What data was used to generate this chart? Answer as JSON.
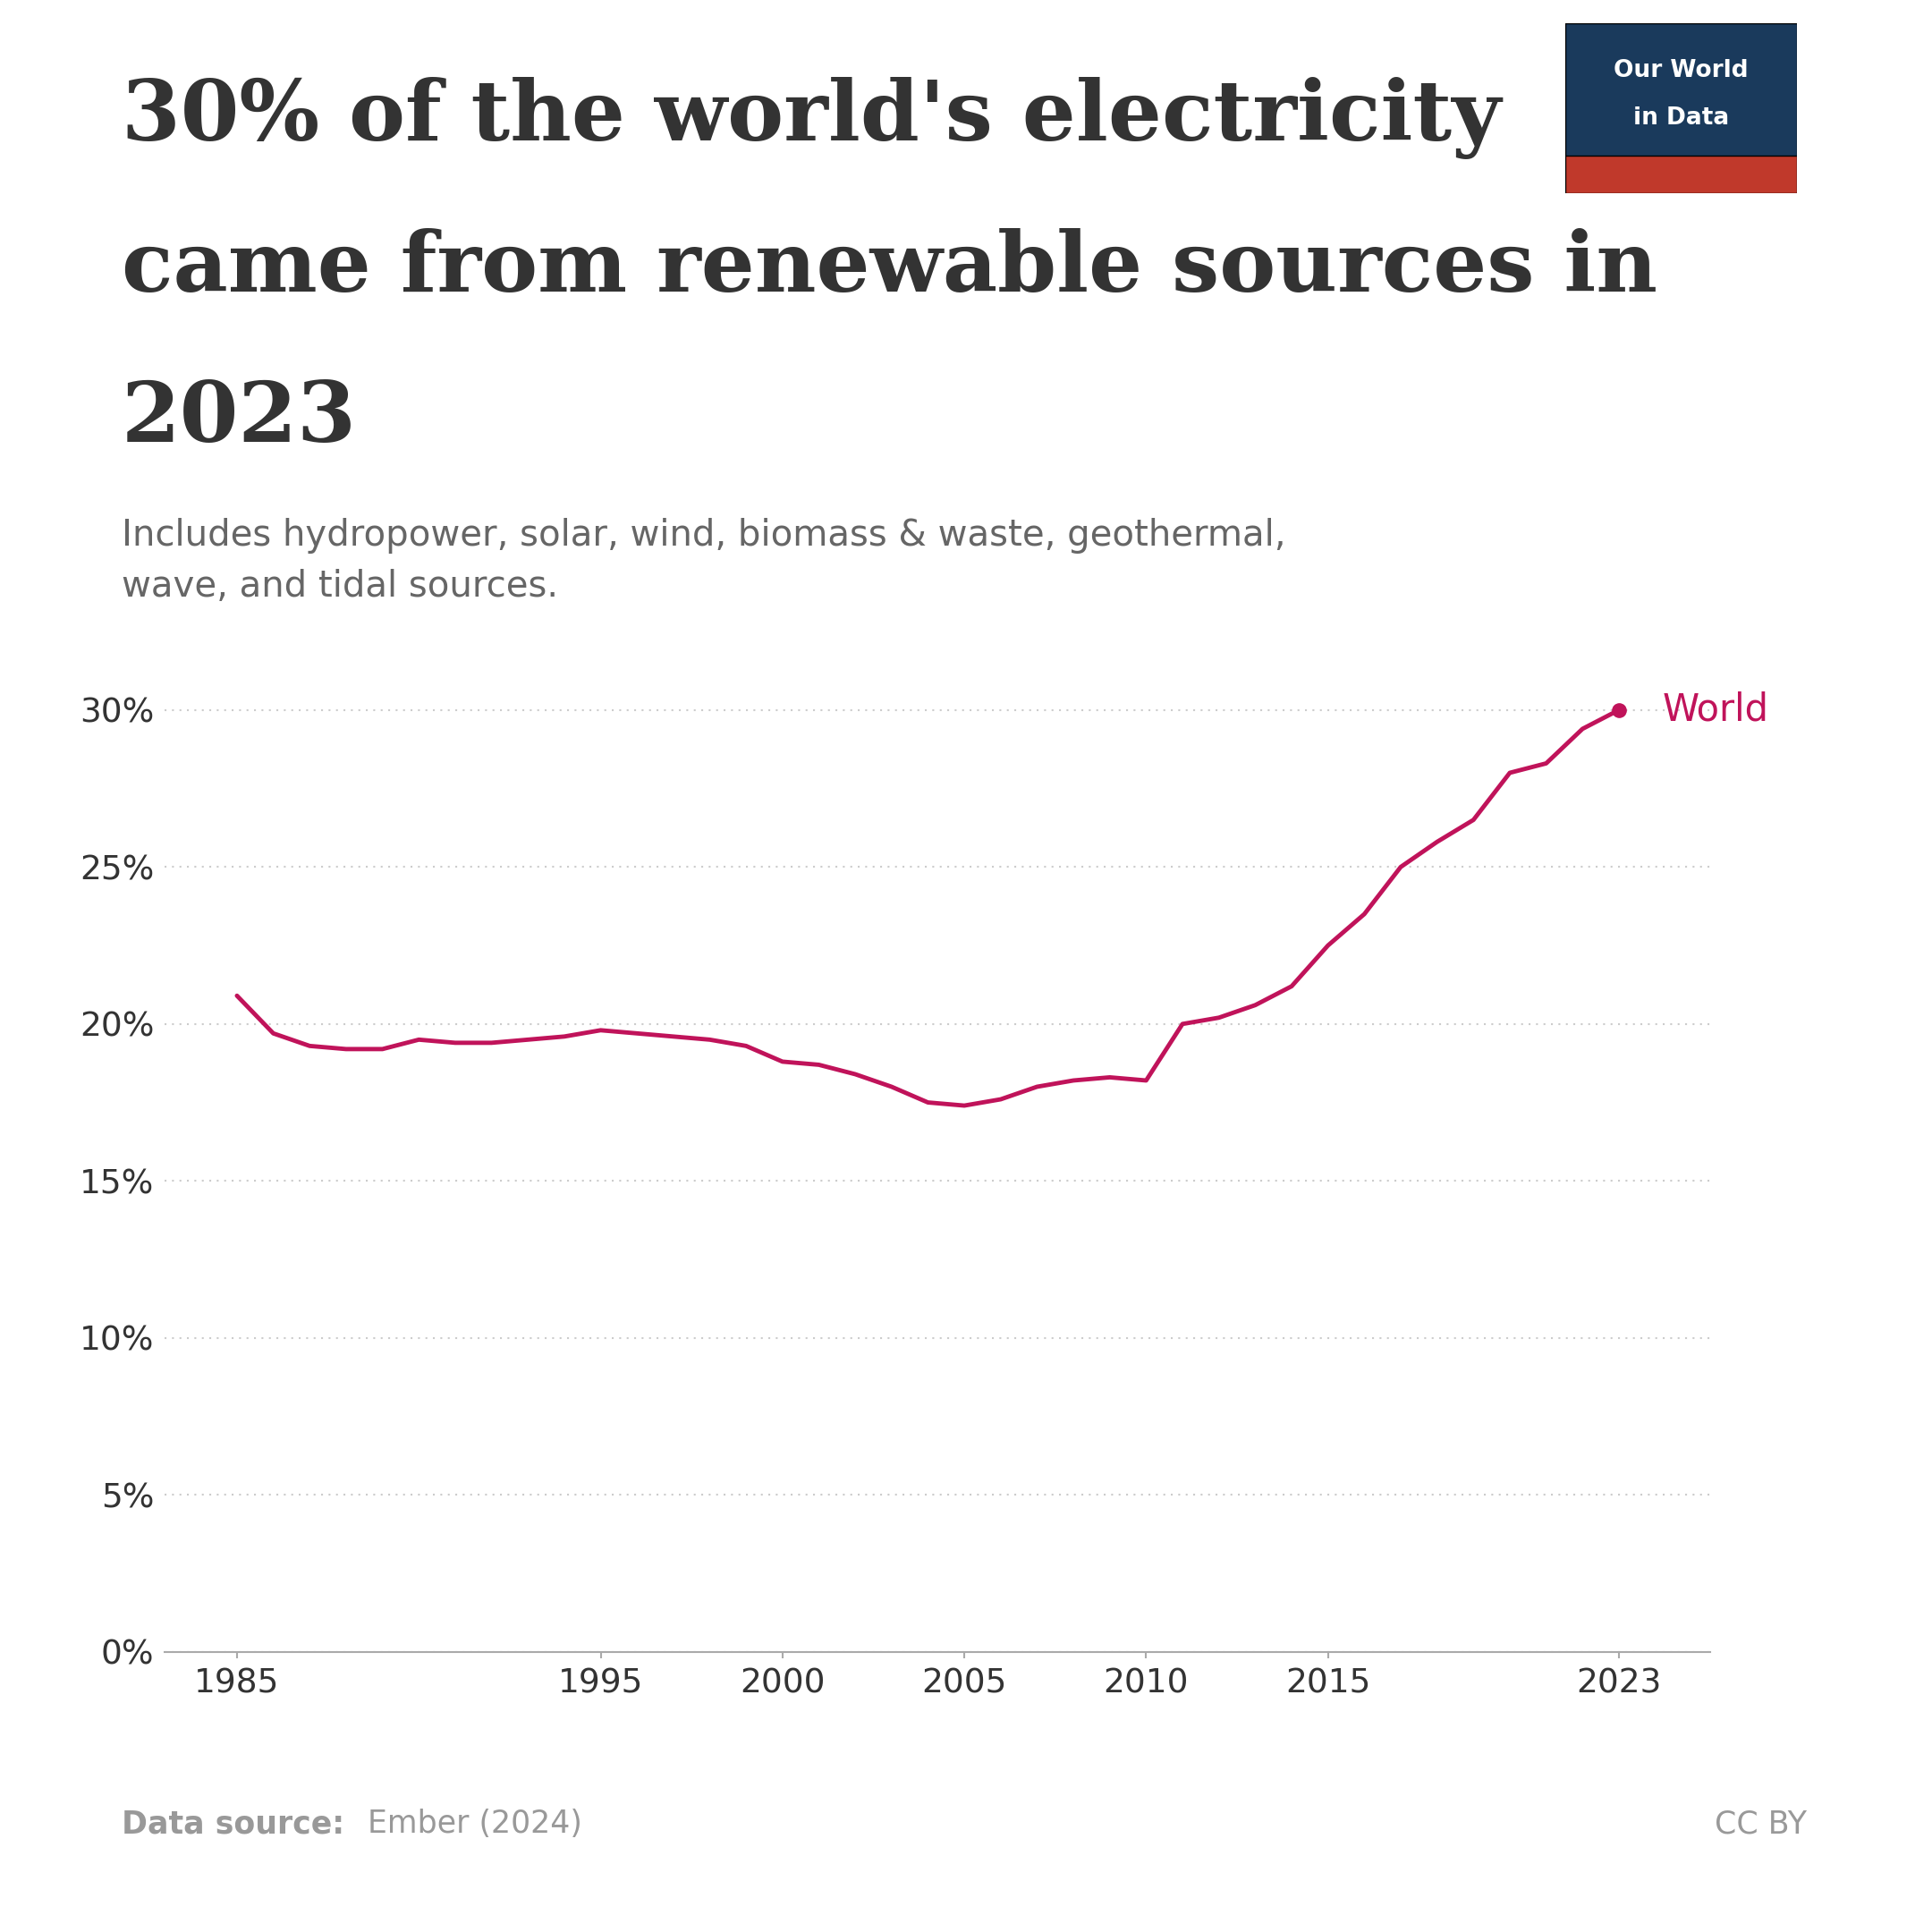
{
  "title_line1": "30% of the world's electricity",
  "title_line2": "came from renewable sources in",
  "title_line3": "2023",
  "subtitle": "Includes hydropower, solar, wind, biomass & waste, geothermal,\nwave, and tidal sources.",
  "data_source_bold": "Data source:",
  "data_source_normal": " Ember (2024)",
  "cc_by": "CC BY",
  "series_label": "World",
  "line_color": "#C0135A",
  "background_color": "#ffffff",
  "grid_color": "#cccccc",
  "axis_color": "#aaaaaa",
  "text_color": "#333333",
  "subtitle_color": "#666666",
  "footer_color": "#999999",
  "years": [
    1985,
    1986,
    1987,
    1988,
    1989,
    1990,
    1991,
    1992,
    1993,
    1994,
    1995,
    1996,
    1997,
    1998,
    1999,
    2000,
    2001,
    2002,
    2003,
    2004,
    2005,
    2006,
    2007,
    2008,
    2009,
    2010,
    2011,
    2012,
    2013,
    2014,
    2015,
    2016,
    2017,
    2018,
    2019,
    2020,
    2021,
    2022,
    2023
  ],
  "values": [
    20.9,
    19.7,
    19.3,
    19.2,
    19.2,
    19.5,
    19.4,
    19.4,
    19.5,
    19.6,
    19.8,
    19.7,
    19.6,
    19.5,
    19.3,
    18.8,
    18.7,
    18.4,
    18.0,
    17.5,
    17.4,
    17.6,
    18.0,
    18.2,
    18.3,
    18.2,
    20.0,
    20.2,
    20.6,
    21.2,
    22.5,
    23.5,
    25.0,
    25.8,
    26.5,
    28.0,
    28.3,
    29.4,
    30.0
  ],
  "xlim": [
    1983,
    2025.5
  ],
  "ylim": [
    0,
    32
  ],
  "yticks": [
    0,
    5,
    10,
    15,
    20,
    25,
    30
  ],
  "ytick_labels": [
    "0%",
    "5%",
    "10%",
    "15%",
    "20%",
    "25%",
    "30%"
  ],
  "xtick_labels": [
    "1985",
    "1995",
    "2000",
    "2005",
    "2010",
    "2015",
    "2023"
  ],
  "xtick_positions": [
    1985,
    1995,
    2000,
    2005,
    2010,
    2015,
    2023
  ],
  "owid_box_color": "#1a3a5c",
  "owid_bar_color": "#c0392b"
}
